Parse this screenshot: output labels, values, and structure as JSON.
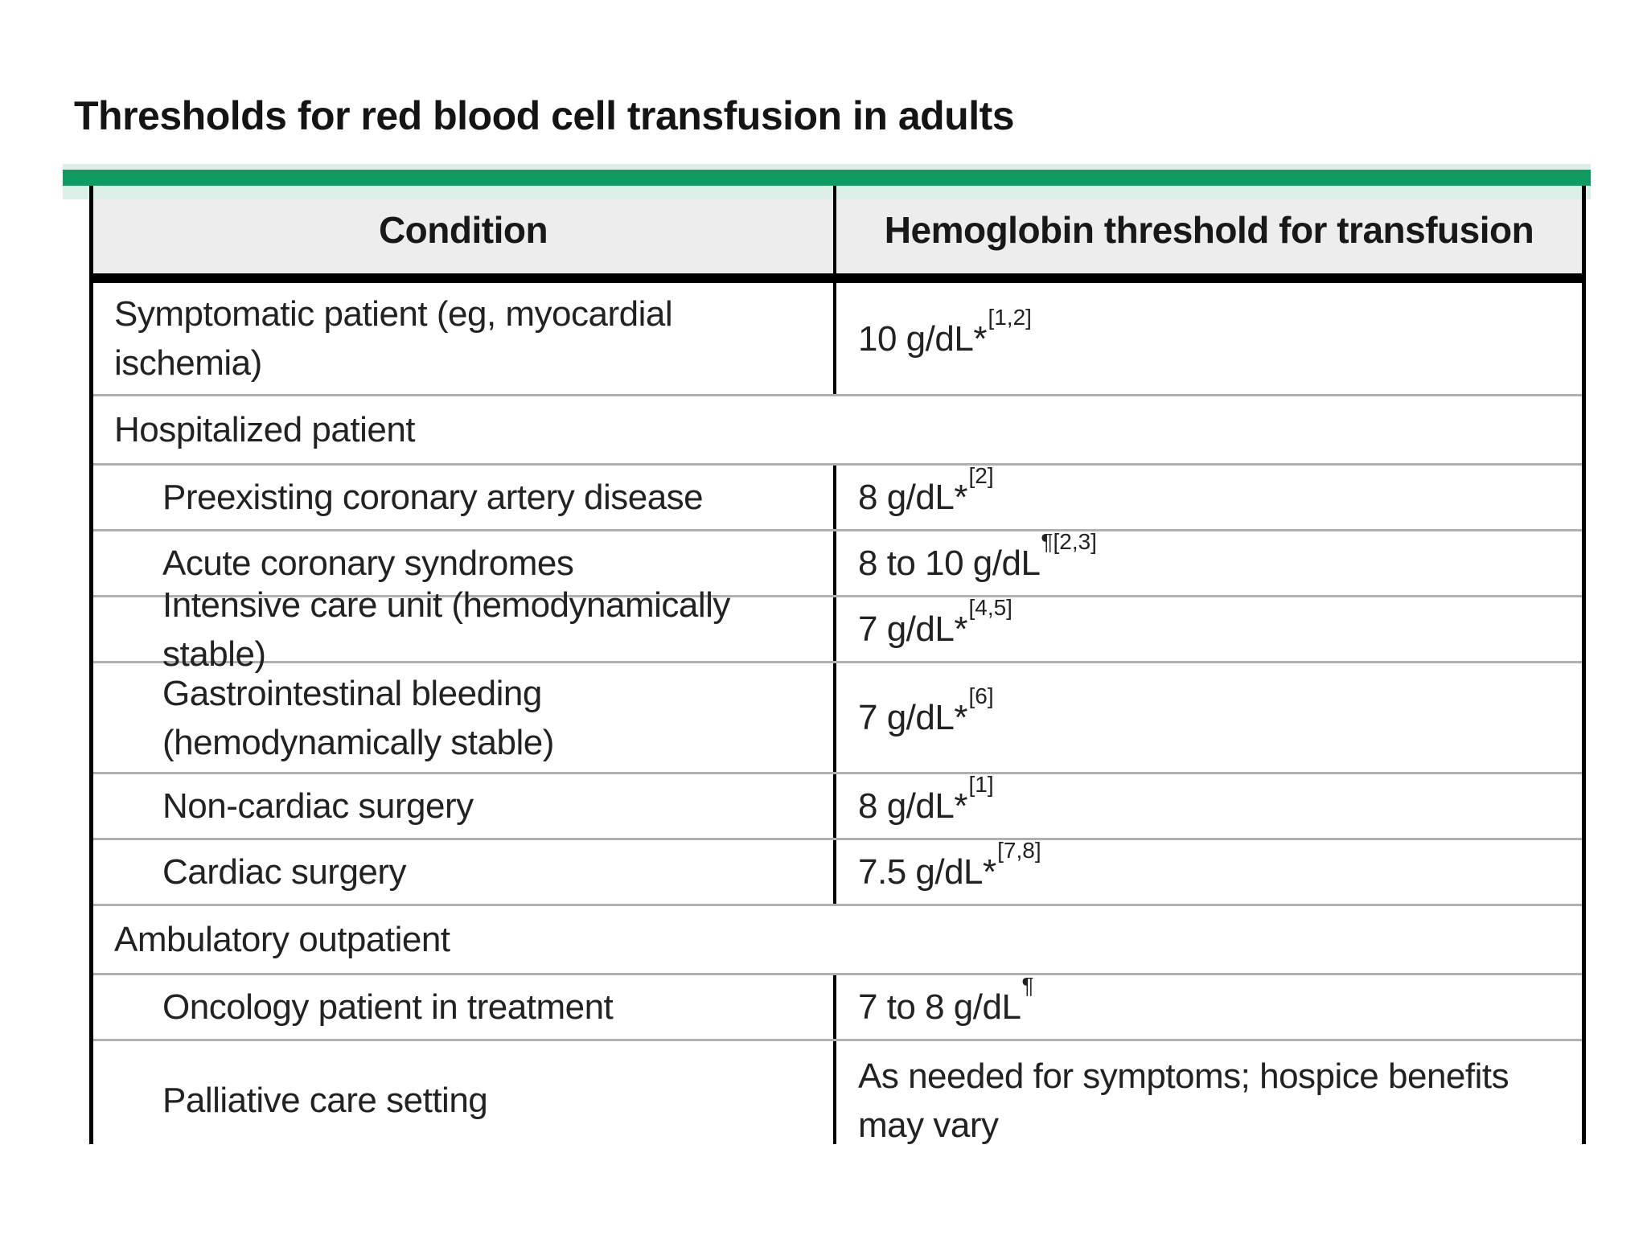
{
  "page": {
    "title": "Thresholds for red blood cell transfusion in adults"
  },
  "theme": {
    "accent_green": "#0f9b62",
    "accent_green_tint": "#ddf0e7",
    "header_bg": "#ededed",
    "border_black": "#000000",
    "row_divider": "#b0b0b0",
    "body_text": "#222222"
  },
  "table": {
    "columns": [
      {
        "label": "Condition"
      },
      {
        "label": "Hemoglobin threshold for transfusion"
      }
    ],
    "rows": [
      {
        "kind": "data",
        "indent": false,
        "lines": 2,
        "condition": "Symptomatic patient (eg, myocardial ischemia)",
        "value": "10 g/dL",
        "marker": "*",
        "refs": "[1,2]"
      },
      {
        "kind": "section",
        "condition": "Hospitalized patient"
      },
      {
        "kind": "data",
        "indent": true,
        "lines": 1,
        "condition": "Preexisting coronary artery disease",
        "value": "8 g/dL",
        "marker": "*",
        "refs": "[2]"
      },
      {
        "kind": "data",
        "indent": true,
        "lines": 1,
        "condition": "Acute coronary syndromes",
        "value": "8 to 10 g/dL",
        "marker": "¶",
        "refs": "[2,3]"
      },
      {
        "kind": "data",
        "indent": true,
        "lines": 1,
        "condition": "Intensive care unit (hemodynamically stable)",
        "value": "7 g/dL",
        "marker": "*",
        "refs": "[4,5]"
      },
      {
        "kind": "data",
        "indent": true,
        "lines": 2,
        "condition": "Gastrointestinal bleeding (hemodynamically stable)",
        "value": "7 g/dL",
        "marker": "*",
        "refs": "[6]"
      },
      {
        "kind": "data",
        "indent": true,
        "lines": 1,
        "condition": "Non-cardiac surgery",
        "value": "8 g/dL",
        "marker": "*",
        "refs": "[1]"
      },
      {
        "kind": "data",
        "indent": true,
        "lines": 1,
        "condition": "Cardiac surgery",
        "value": "7.5 g/dL",
        "marker": "*",
        "refs": "[7,8]"
      },
      {
        "kind": "section",
        "condition": "Ambulatory outpatient"
      },
      {
        "kind": "data",
        "indent": true,
        "lines": 1,
        "condition": "Oncology patient in treatment",
        "value": "7 to 8 g/dL",
        "marker": "¶",
        "refs": ""
      },
      {
        "kind": "data",
        "indent": true,
        "lines": 2,
        "condition": "Palliative care setting",
        "value": "As needed for symptoms; hospice benefits may vary",
        "marker": "",
        "refs": "",
        "cut": true
      }
    ]
  }
}
